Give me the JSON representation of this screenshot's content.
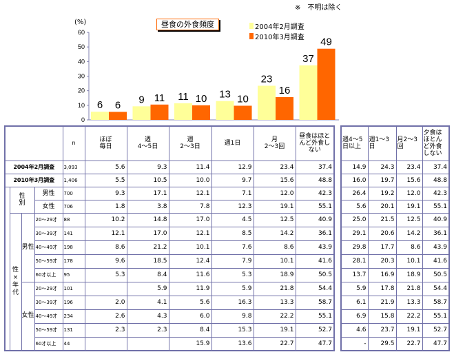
{
  "note": "※　不明は除く",
  "chart_data": {
    "type": "bar",
    "title": "昼食の外食頻度",
    "ylabel": "(%)",
    "ylim": [
      0,
      60
    ],
    "yticks": [
      0,
      10,
      20,
      30,
      40,
      50,
      60
    ],
    "categories": [
      "ほぼ毎日",
      "週4～5日",
      "週2～3日",
      "週1日",
      "月2～3回",
      "昼食はほとんど外食しない"
    ],
    "legend_position": "top-right",
    "series": [
      {
        "name": "2004年2月調査",
        "color": "#FFFF99",
        "values": [
          5.6,
          9.3,
          11.4,
          12.9,
          23.4,
          37.4
        ],
        "labels": [
          "6",
          "9",
          "11",
          "13",
          "23",
          "37"
        ]
      },
      {
        "name": "2010年3月調査",
        "color": "#FF6600",
        "values": [
          5.5,
          10.5,
          10.0,
          9.7,
          15.6,
          48.8
        ],
        "labels": [
          "6",
          "11",
          "10",
          "10",
          "16",
          "49"
        ]
      }
    ]
  },
  "table": {
    "headers": [
      "n",
      "ほぼ\n毎日",
      "週\n4～5日",
      "週\n2～3日",
      "週1日",
      "月\n2～3回",
      "昼食はほとんど外食しない"
    ],
    "right_headers": [
      "週4～5日以上",
      "週1～3日",
      "月2～3回",
      "夕食はほとんど外食しない"
    ],
    "group_sex": "性別",
    "group_sexage": "性×年代",
    "male": "男性",
    "female": "女性",
    "rows": [
      {
        "label": "2004年2月調査",
        "n": "3,093",
        "v": [
          "5.6",
          "9.3",
          "11.4",
          "12.9",
          "23.4",
          "37.4"
        ],
        "r": [
          "14.9",
          "24.3",
          "23.4",
          "37.4"
        ]
      },
      {
        "label": "2010年3月調査",
        "n": "1,406",
        "v": [
          "5.5",
          "10.5",
          "10.0",
          "9.7",
          "15.6",
          "48.8"
        ],
        "r": [
          "16.0",
          "19.7",
          "15.6",
          "48.8"
        ]
      },
      {
        "label": "男性",
        "n": "700",
        "v": [
          "9.3",
          "17.1",
          "12.1",
          "7.1",
          "12.0",
          "42.3"
        ],
        "r": [
          "26.4",
          "19.2",
          "12.0",
          "42.3"
        ]
      },
      {
        "label": "女性",
        "n": "706",
        "v": [
          "1.8",
          "3.8",
          "7.8",
          "12.3",
          "19.1",
          "55.1"
        ],
        "r": [
          "5.6",
          "20.1",
          "19.1",
          "55.1"
        ]
      },
      {
        "label": "20～29才",
        "n": "88",
        "v": [
          "10.2",
          "14.8",
          "17.0",
          "4.5",
          "12.5",
          "40.9"
        ],
        "r": [
          "25.0",
          "21.5",
          "12.5",
          "40.9"
        ]
      },
      {
        "label": "30～39才",
        "n": "141",
        "v": [
          "12.1",
          "17.0",
          "12.1",
          "8.5",
          "14.2",
          "36.1"
        ],
        "r": [
          "29.1",
          "20.6",
          "14.2",
          "36.1"
        ]
      },
      {
        "label": "40～49才",
        "n": "198",
        "v": [
          "8.6",
          "21.2",
          "10.1",
          "7.6",
          "8.6",
          "43.9"
        ],
        "r": [
          "29.8",
          "17.7",
          "8.6",
          "43.9"
        ]
      },
      {
        "label": "50～59才",
        "n": "178",
        "v": [
          "9.6",
          "18.5",
          "12.4",
          "7.9",
          "10.1",
          "41.6"
        ],
        "r": [
          "28.1",
          "20.3",
          "10.1",
          "41.6"
        ]
      },
      {
        "label": "60才以上",
        "n": "95",
        "v": [
          "5.3",
          "8.4",
          "11.6",
          "5.3",
          "18.9",
          "50.5"
        ],
        "r": [
          "13.7",
          "16.9",
          "18.9",
          "50.5"
        ]
      },
      {
        "label": "20～29才",
        "n": "101",
        "v": [
          "",
          "5.9",
          "11.9",
          "5.9",
          "21.8",
          "54.4"
        ],
        "r": [
          "5.9",
          "17.8",
          "21.8",
          "54.4"
        ]
      },
      {
        "label": "30～39才",
        "n": "196",
        "v": [
          "2.0",
          "4.1",
          "5.6",
          "16.3",
          "13.3",
          "58.7"
        ],
        "r": [
          "6.1",
          "21.9",
          "13.3",
          "58.7"
        ]
      },
      {
        "label": "40～49才",
        "n": "234",
        "v": [
          "2.6",
          "4.3",
          "6.0",
          "9.8",
          "22.2",
          "55.1"
        ],
        "r": [
          "6.9",
          "15.8",
          "22.2",
          "55.1"
        ]
      },
      {
        "label": "50～59才",
        "n": "131",
        "v": [
          "2.3",
          "2.3",
          "8.4",
          "15.3",
          "19.1",
          "52.7"
        ],
        "r": [
          "4.6",
          "23.7",
          "19.1",
          "52.7"
        ]
      },
      {
        "label": "60才以上",
        "n": "44",
        "v": [
          "",
          "",
          "15.9",
          "13.6",
          "22.7",
          "47.7"
        ],
        "r": [
          "-",
          "29.5",
          "22.7",
          "47.7"
        ]
      }
    ]
  }
}
